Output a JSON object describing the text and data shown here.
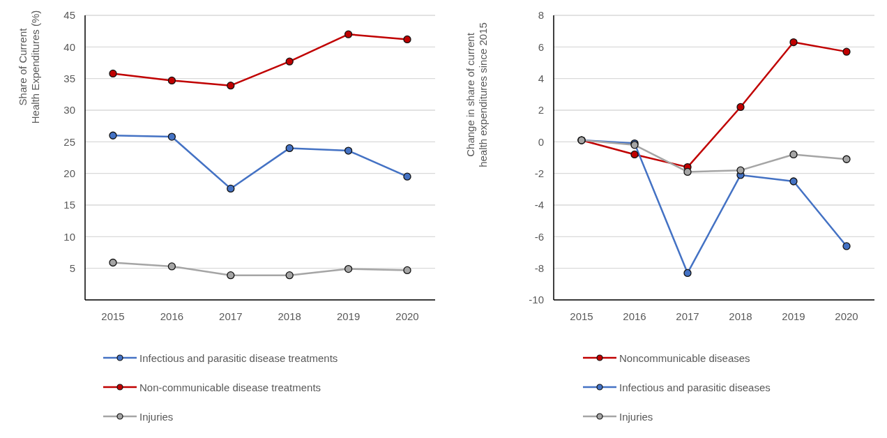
{
  "chart_data": [
    {
      "type": "line",
      "ylabel": "Share of Current\nHealth Expenditures (%)",
      "categories": [
        "2015",
        "2016",
        "2017",
        "2018",
        "2019",
        "2020"
      ],
      "series": [
        {
          "name": "Infectious and parasitic disease treatments",
          "color": "#4472c4",
          "values": [
            26.0,
            25.8,
            17.6,
            24.0,
            23.6,
            19.5
          ]
        },
        {
          "name": "Non-communicable disease treatments",
          "color": "#c00000",
          "values": [
            35.8,
            34.7,
            33.9,
            37.7,
            42.0,
            41.2
          ]
        },
        {
          "name": "Injuries",
          "color": "#a5a5a5",
          "values": [
            5.9,
            5.3,
            3.9,
            3.9,
            4.9,
            4.7
          ]
        }
      ],
      "ylim": [
        0,
        45
      ],
      "yticks": [
        5,
        10,
        15,
        20,
        25,
        30,
        35,
        40,
        45
      ],
      "grid": "y",
      "legend": "bottom",
      "marker": "circle",
      "line_style": "solid"
    },
    {
      "type": "line",
      "ylabel": "Change in share of current\nhealth expenditures since 2015",
      "categories": [
        "2015",
        "2016",
        "2017",
        "2018",
        "2019",
        "2020"
      ],
      "series": [
        {
          "name": "Noncommunicable diseases",
          "color": "#c00000",
          "values": [
            0.1,
            -0.8,
            -1.6,
            2.2,
            6.3,
            5.7
          ]
        },
        {
          "name": "Infectious and parasitic diseases",
          "color": "#4472c4",
          "values": [
            0.1,
            -0.1,
            -8.3,
            -2.1,
            -2.5,
            -6.6
          ]
        },
        {
          "name": "Injuries",
          "color": "#a5a5a5",
          "values": [
            0.1,
            -0.2,
            -1.9,
            -1.8,
            -0.8,
            -1.1
          ]
        }
      ],
      "ylim": [
        -10,
        8
      ],
      "yticks": [
        -10,
        -8,
        -6,
        -4,
        -2,
        0,
        2,
        4,
        6,
        8
      ],
      "grid": "y",
      "legend": "bottom",
      "marker": "circle",
      "line_style": "solid"
    }
  ]
}
